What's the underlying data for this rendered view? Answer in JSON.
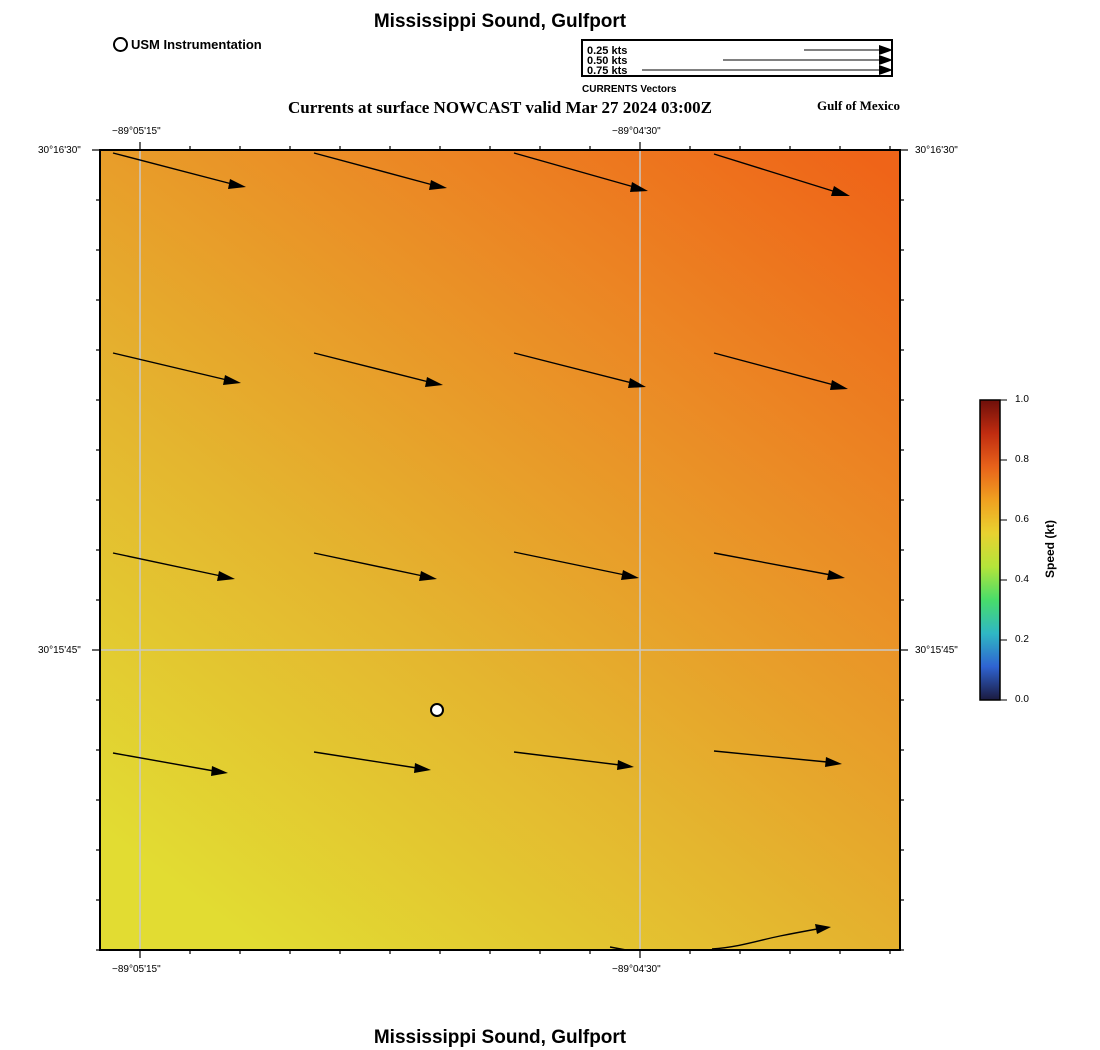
{
  "title": "Mississippi Sound, Gulfport",
  "footer_title": "Mississippi Sound, Gulfport",
  "subtitle": "Currents at surface NOWCAST valid Mar 27 2024 03:00Z",
  "region_label": "Gulf of Mexico",
  "legend": {
    "station_label": "USM Instrumentation"
  },
  "vector_legend": {
    "caption": "CURRENTS Vectors",
    "entries": [
      {
        "label": "0.25 kts",
        "speed_kt": 0.25
      },
      {
        "label": "0.50 kts",
        "speed_kt": 0.5
      },
      {
        "label": "0.75 kts",
        "speed_kt": 0.75
      }
    ]
  },
  "axes": {
    "lon_ticks": [
      "−89°05'15\"",
      "−89°04'30\""
    ],
    "lat_ticks": [
      "30°16'30\"",
      "30°15'45\""
    ]
  },
  "colorbar": {
    "title": "Speed (kt)",
    "ticks": [
      "0.0",
      "0.2",
      "0.4",
      "0.6",
      "0.8",
      "1.0"
    ],
    "colors": [
      "#1b1a3f",
      "#2f63d1",
      "#2fb7c4",
      "#48dd6a",
      "#b4e53a",
      "#e9d230",
      "#f0a020",
      "#e8621a",
      "#c02c10",
      "#6e0f0a"
    ]
  },
  "field": {
    "colors": [
      "#e2dc32",
      "#e4b52f",
      "#eb8a25",
      "#ef6418"
    ]
  }
}
